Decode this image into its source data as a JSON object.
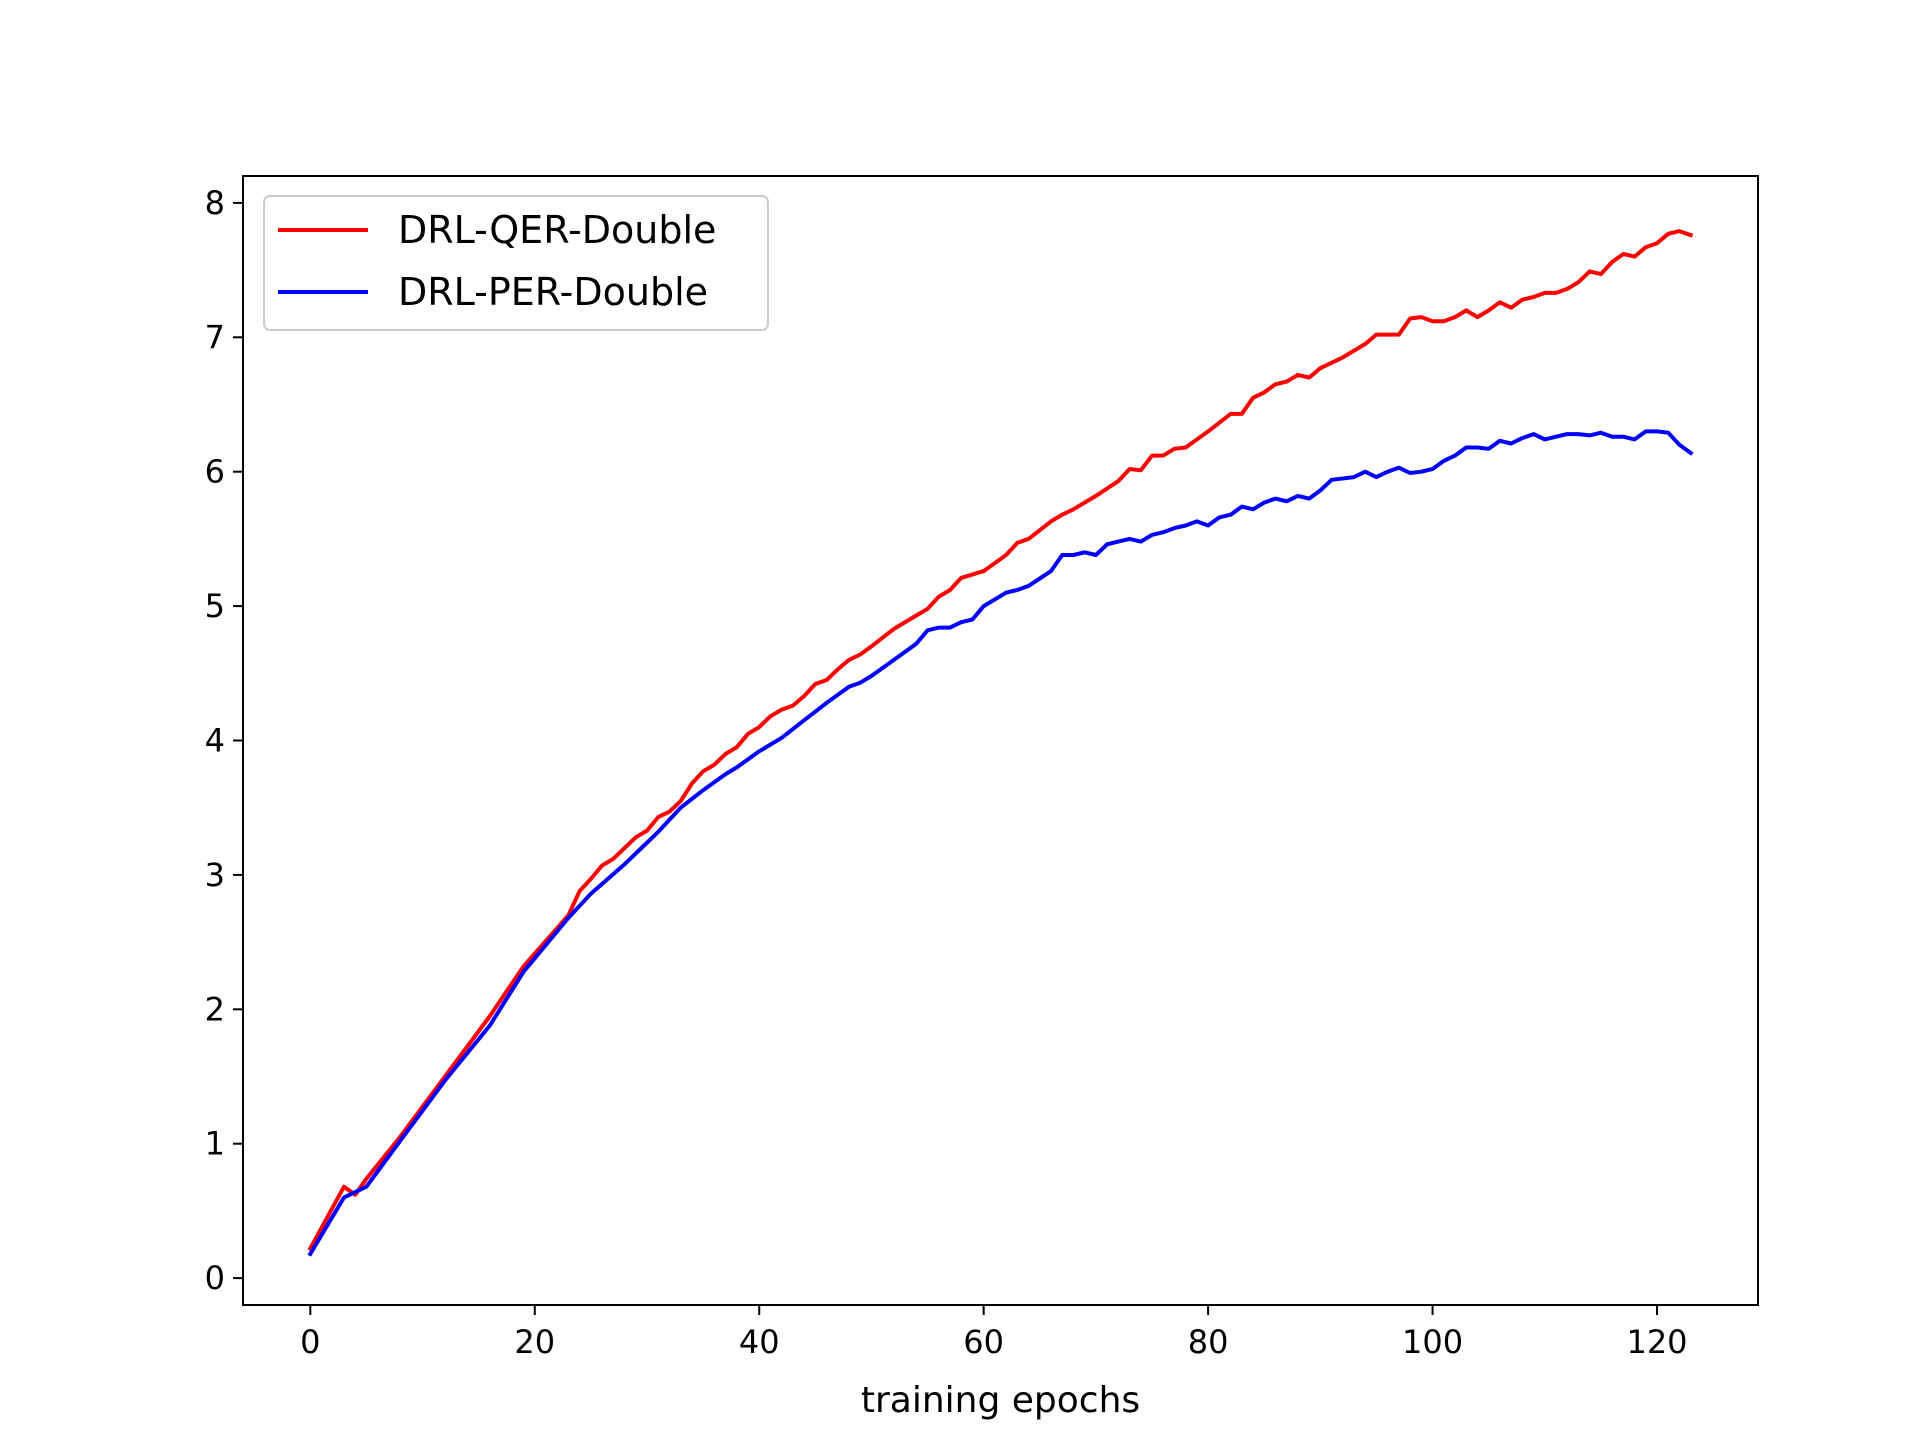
{
  "chart_data": {
    "type": "line",
    "title": "",
    "xlabel": "training epochs",
    "ylabel": "",
    "xlim": [
      -6,
      129
    ],
    "ylim": [
      -0.2,
      8.2
    ],
    "xticks": [
      0,
      20,
      40,
      60,
      80,
      100,
      120
    ],
    "yticks": [
      0,
      1,
      2,
      3,
      4,
      5,
      6,
      7,
      8
    ],
    "xtick_labels": [
      "0",
      "20",
      "40",
      "60",
      "80",
      "100",
      "120"
    ],
    "ytick_labels": [
      "0",
      "1",
      "2",
      "3",
      "4",
      "5",
      "6",
      "7",
      "8"
    ],
    "grid": false,
    "legend_position": "upper-left",
    "series": [
      {
        "name": "DRL-QER-Double",
        "color": "#ff0000",
        "x": [
          0,
          3,
          4,
          5,
          8,
          12,
          16,
          19,
          23,
          24,
          25,
          26,
          27,
          28,
          29,
          30,
          31,
          32,
          33,
          34,
          35,
          36,
          37,
          38,
          39,
          40,
          41,
          42,
          43,
          44,
          45,
          46,
          47,
          48,
          49,
          50,
          52,
          54,
          55,
          56,
          57,
          58,
          60,
          62,
          63,
          64,
          66,
          67,
          68,
          70,
          72,
          73,
          74,
          75,
          76,
          77,
          78,
          80,
          82,
          83,
          84,
          85,
          86,
          87,
          88,
          89,
          90,
          92,
          94,
          95,
          97,
          98,
          99,
          100,
          101,
          102,
          103,
          104,
          105,
          106,
          107,
          108,
          109,
          110,
          111,
          112,
          113,
          114,
          115,
          116,
          117,
          118,
          119,
          120,
          121,
          122,
          123
        ],
        "y": [
          0.22,
          0.68,
          0.62,
          0.74,
          1.05,
          1.5,
          1.95,
          2.32,
          2.7,
          2.88,
          2.97,
          3.07,
          3.12,
          3.2,
          3.28,
          3.33,
          3.43,
          3.47,
          3.55,
          3.68,
          3.77,
          3.82,
          3.9,
          3.95,
          4.05,
          4.1,
          4.18,
          4.23,
          4.26,
          4.33,
          4.42,
          4.45,
          4.53,
          4.6,
          4.64,
          4.7,
          4.83,
          4.93,
          4.98,
          5.07,
          5.12,
          5.21,
          5.26,
          5.38,
          5.47,
          5.5,
          5.63,
          5.68,
          5.72,
          5.82,
          5.93,
          6.02,
          6.01,
          6.12,
          6.12,
          6.17,
          6.18,
          6.3,
          6.43,
          6.43,
          6.55,
          6.59,
          6.65,
          6.67,
          6.72,
          6.7,
          6.77,
          6.85,
          6.95,
          7.02,
          7.02,
          7.14,
          7.15,
          7.12,
          7.12,
          7.15,
          7.2,
          7.15,
          7.2,
          7.26,
          7.22,
          7.28,
          7.3,
          7.33,
          7.33,
          7.36,
          7.41,
          7.49,
          7.47,
          7.56,
          7.62,
          7.6,
          7.67,
          7.7,
          7.77,
          7.79,
          7.76
        ]
      },
      {
        "name": "DRL-PER-Double",
        "color": "#0000ff",
        "x": [
          0,
          3,
          4,
          5,
          8,
          12,
          16,
          19,
          23,
          25,
          28,
          31,
          33,
          35,
          37,
          38,
          40,
          42,
          44,
          46,
          48,
          49,
          50,
          52,
          54,
          55,
          56,
          57,
          58,
          59,
          60,
          62,
          63,
          64,
          66,
          67,
          68,
          69,
          70,
          71,
          72,
          73,
          74,
          75,
          76,
          77,
          78,
          79,
          80,
          81,
          82,
          83,
          84,
          85,
          86,
          87,
          88,
          89,
          90,
          91,
          93,
          94,
          95,
          96,
          97,
          98,
          99,
          100,
          101,
          102,
          103,
          104,
          105,
          106,
          107,
          108,
          109,
          110,
          111,
          112,
          113,
          114,
          115,
          116,
          117,
          118,
          119,
          120,
          121,
          122,
          123
        ],
        "y": [
          0.18,
          0.6,
          0.64,
          0.68,
          1.02,
          1.47,
          1.88,
          2.28,
          2.68,
          2.86,
          3.08,
          3.32,
          3.5,
          3.63,
          3.75,
          3.8,
          3.92,
          4.02,
          4.15,
          4.28,
          4.4,
          4.43,
          4.48,
          4.6,
          4.72,
          4.82,
          4.84,
          4.84,
          4.88,
          4.9,
          5.0,
          5.1,
          5.12,
          5.15,
          5.26,
          5.38,
          5.38,
          5.4,
          5.38,
          5.46,
          5.48,
          5.5,
          5.48,
          5.53,
          5.55,
          5.58,
          5.6,
          5.63,
          5.6,
          5.66,
          5.68,
          5.74,
          5.72,
          5.77,
          5.8,
          5.78,
          5.82,
          5.8,
          5.86,
          5.94,
          5.96,
          6.0,
          5.96,
          6.0,
          6.03,
          5.99,
          6.0,
          6.02,
          6.08,
          6.12,
          6.18,
          6.18,
          6.17,
          6.23,
          6.21,
          6.25,
          6.28,
          6.24,
          6.26,
          6.28,
          6.28,
          6.27,
          6.29,
          6.26,
          6.26,
          6.24,
          6.3,
          6.3,
          6.29,
          6.2,
          6.14
        ]
      }
    ]
  }
}
